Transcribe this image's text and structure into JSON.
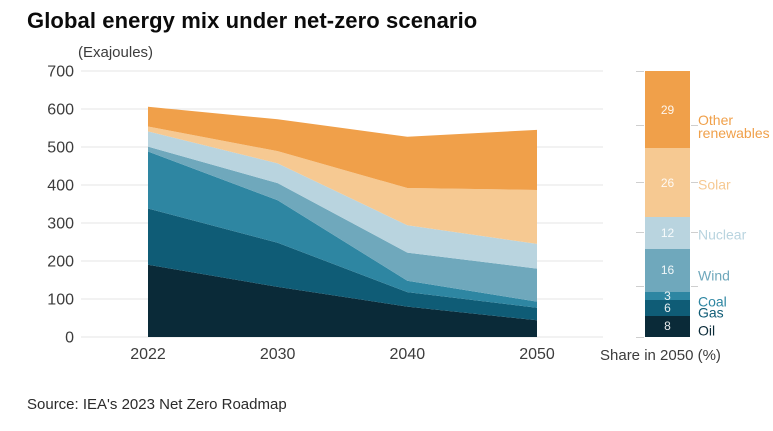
{
  "title": "Global energy mix under net-zero scenario",
  "axis_unit_label": "(Exajoules)",
  "source": "Source: IEA's 2023 Net Zero Roadmap",
  "legend": {
    "title": "Share in 2050 (%)",
    "items": [
      {
        "label": "Other renewables",
        "value": 29,
        "color": "#F0A04A"
      },
      {
        "label": "Solar",
        "value": 26,
        "color": "#F6C992"
      },
      {
        "label": "Nuclear",
        "value": 12,
        "color": "#B9D4DF"
      },
      {
        "label": "Wind",
        "value": 16,
        "color": "#6FA8BC"
      },
      {
        "label": "Coal",
        "value": 3,
        "color": "#2E86A2"
      },
      {
        "label": "Gas",
        "value": 6,
        "color": "#0F5C76"
      },
      {
        "label": "Oil",
        "value": 8,
        "color": "#0A2A38"
      }
    ]
  },
  "chart_data": {
    "type": "area",
    "stacked": true,
    "title": "Global energy mix under net-zero scenario",
    "ylabel": "(Exajoules)",
    "x": [
      2022,
      2030,
      2040,
      2050
    ],
    "x_tick_labels": [
      "2022",
      "2030",
      "2040",
      "2050"
    ],
    "ylim": [
      0,
      700
    ],
    "y_ticks": [
      0,
      100,
      200,
      300,
      400,
      500,
      600,
      700
    ],
    "grid": true,
    "legend_position": "right",
    "legend_title": "Share in 2050 (%)",
    "series": [
      {
        "name": "Oil",
        "color": "#0A2A38",
        "values": [
          190,
          132,
          80,
          44
        ],
        "share_2050_pct": 8
      },
      {
        "name": "Gas",
        "color": "#0F5C76",
        "values": [
          148,
          116,
          38,
          33
        ],
        "share_2050_pct": 6
      },
      {
        "name": "Coal",
        "color": "#2E86A2",
        "values": [
          150,
          112,
          30,
          16
        ],
        "share_2050_pct": 3
      },
      {
        "name": "Wind",
        "color": "#6FA8BC",
        "values": [
          13,
          45,
          74,
          87
        ],
        "share_2050_pct": 16
      },
      {
        "name": "Nuclear",
        "color": "#B9D4DF",
        "values": [
          40,
          52,
          72,
          65
        ],
        "share_2050_pct": 12
      },
      {
        "name": "Solar",
        "color": "#F6C992",
        "values": [
          13,
          32,
          98,
          142
        ],
        "share_2050_pct": 26
      },
      {
        "name": "Other renewables",
        "color": "#F0A04A",
        "values": [
          52,
          84,
          135,
          158
        ],
        "share_2050_pct": 29
      }
    ],
    "totals_by_year": [
      606,
      573,
      527,
      545
    ]
  }
}
